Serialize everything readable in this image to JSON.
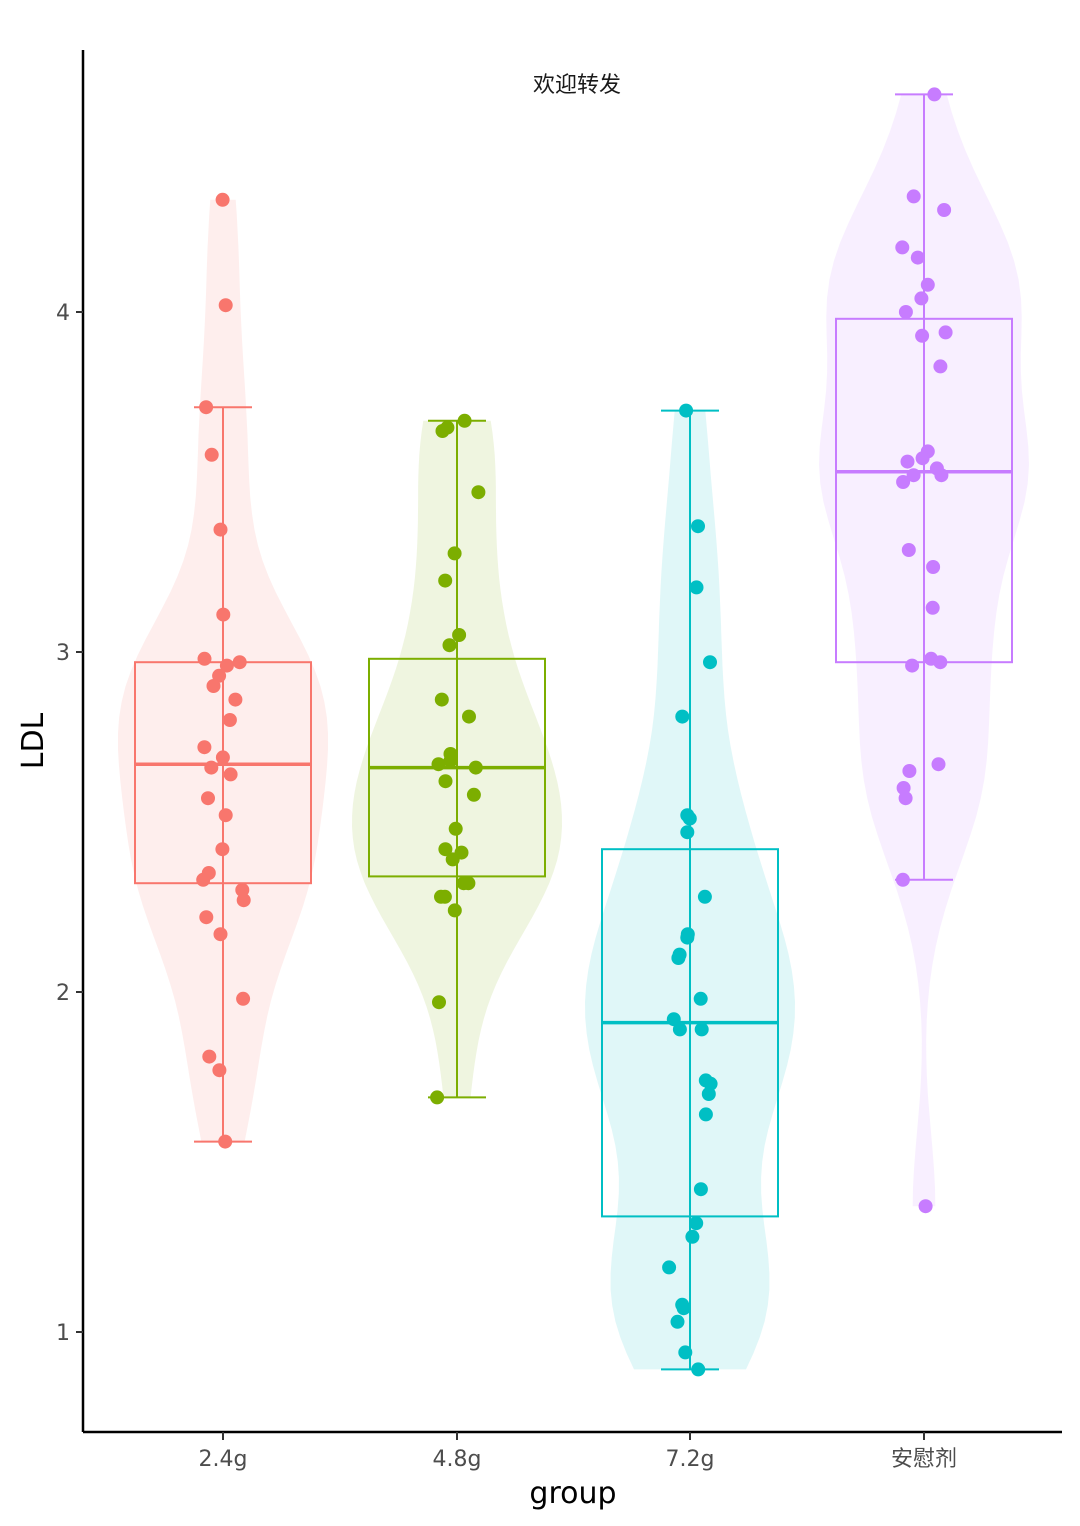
{
  "chart_data": {
    "type": "violin+box+jitter",
    "title": "",
    "annotation": "欢迎转发",
    "xlabel": "group",
    "ylabel": "LDL",
    "categories": [
      "2.4g",
      "4.8g",
      "7.2g",
      "安慰剂"
    ],
    "y_ticks": [
      1,
      2,
      3,
      4
    ],
    "ylim": [
      0.7,
      4.75
    ],
    "grid": false,
    "legend": "none",
    "series": [
      {
        "color": "#F8766D",
        "box": {
          "min": 1.56,
          "q1": 2.32,
          "median": 2.67,
          "q3": 2.97,
          "max": 3.72
        },
        "violin_range": [
          1.56,
          4.33
        ],
        "points": [
          4.33,
          4.02,
          3.72,
          3.58,
          3.36,
          3.11,
          2.98,
          2.97,
          2.96,
          2.93,
          2.9,
          2.86,
          2.8,
          2.72,
          2.69,
          2.66,
          2.64,
          2.57,
          2.52,
          2.42,
          2.35,
          2.33,
          2.3,
          2.27,
          2.22,
          2.17,
          1.98,
          1.81,
          1.77,
          1.56
        ]
      },
      {
        "color": "#7CAE00",
        "box": {
          "min": 1.69,
          "q1": 2.34,
          "median": 2.66,
          "q3": 2.98,
          "max": 3.68
        },
        "violin_range": [
          1.69,
          3.68
        ],
        "points": [
          3.68,
          3.66,
          3.65,
          3.47,
          3.29,
          3.21,
          3.05,
          3.02,
          2.86,
          2.81,
          2.7,
          2.68,
          2.67,
          2.66,
          2.62,
          2.58,
          2.48,
          2.42,
          2.41,
          2.39,
          2.32,
          2.32,
          2.28,
          2.28,
          2.24,
          1.97,
          1.69
        ]
      },
      {
        "color": "#00BFC4",
        "box": {
          "min": 0.89,
          "q1": 1.34,
          "median": 1.91,
          "q3": 2.42,
          "max": 3.71
        },
        "violin_range": [
          0.89,
          3.71
        ],
        "points": [
          3.71,
          3.37,
          3.19,
          2.97,
          2.81,
          2.52,
          2.51,
          2.47,
          2.28,
          2.17,
          2.16,
          2.11,
          2.1,
          1.98,
          1.92,
          1.89,
          1.89,
          1.74,
          1.73,
          1.7,
          1.64,
          1.42,
          1.32,
          1.28,
          1.19,
          1.08,
          1.07,
          1.03,
          0.94,
          0.89
        ]
      },
      {
        "color": "#C77CFF",
        "box": {
          "min": 2.33,
          "q1": 2.97,
          "median": 3.53,
          "q3": 3.98,
          "max": 4.64
        },
        "violin_range": [
          1.37,
          4.64
        ],
        "points": [
          4.64,
          4.34,
          4.3,
          4.19,
          4.16,
          4.08,
          4.04,
          4.0,
          3.94,
          3.93,
          3.84,
          3.59,
          3.57,
          3.56,
          3.54,
          3.52,
          3.52,
          3.5,
          3.3,
          3.25,
          3.13,
          2.98,
          2.97,
          2.96,
          2.67,
          2.65,
          2.6,
          2.57,
          2.33,
          1.37
        ]
      }
    ]
  }
}
